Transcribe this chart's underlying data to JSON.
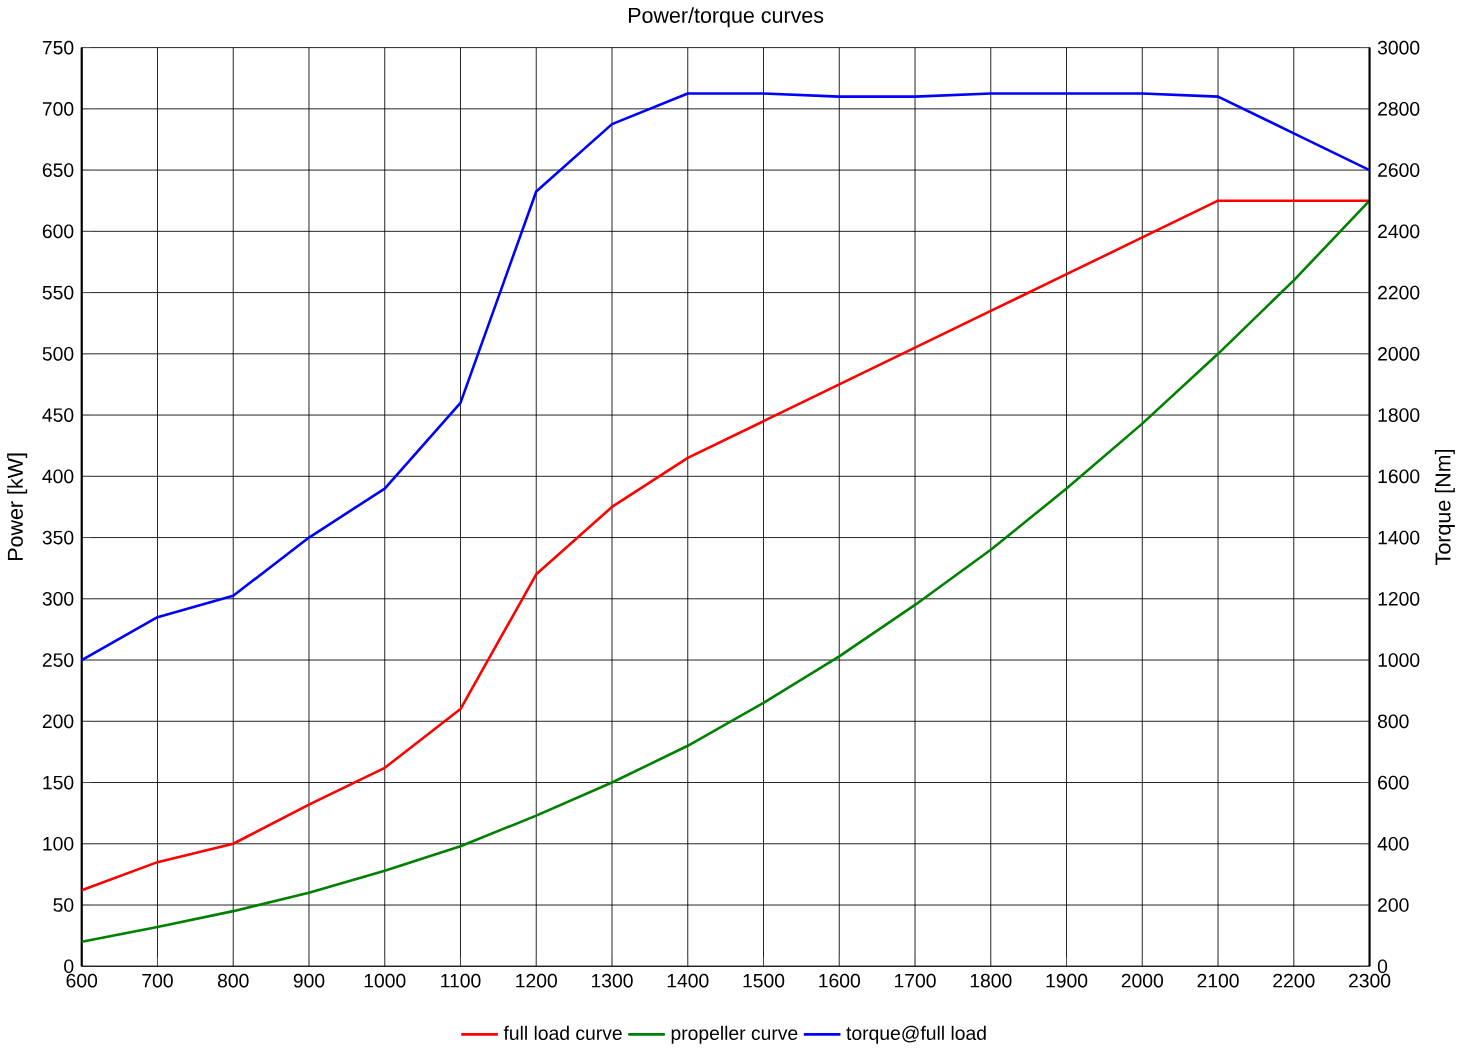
{
  "chart_data": {
    "type": "line",
    "title": "Power/torque curves",
    "ylabel": "Power [kW]",
    "y2label": "Torque [Nm]",
    "x": [
      600,
      700,
      800,
      900,
      1000,
      1100,
      1200,
      1300,
      1400,
      1500,
      1600,
      1700,
      1800,
      1900,
      2000,
      2100,
      2200,
      2300
    ],
    "series": [
      {
        "name": "full load curve",
        "color": "#ff0000",
        "values": [
          62,
          85,
          100,
          132,
          162,
          210,
          320,
          375,
          415,
          445,
          475,
          505,
          535,
          565,
          595,
          625,
          625,
          625
        ]
      },
      {
        "name": "propeller curve",
        "color": "#008000",
        "values": [
          20,
          32,
          45,
          60,
          78,
          98,
          123,
          150,
          180,
          215,
          253,
          295,
          340,
          390,
          443,
          500,
          560,
          625
        ]
      },
      {
        "name": "torque@full load",
        "color": "#0000ff",
        "axis": "y2",
        "values": [
          1000,
          1140,
          1210,
          1400,
          1560,
          1840,
          2530,
          2750,
          2850,
          2850,
          2840,
          2840,
          2850,
          2850,
          2850,
          2840,
          2720,
          2600
        ]
      }
    ],
    "xlim": [
      600,
      2300
    ],
    "xticks": [
      600,
      700,
      800,
      900,
      1000,
      1100,
      1200,
      1300,
      1400,
      1500,
      1600,
      1700,
      1800,
      1900,
      2000,
      2100,
      2200,
      2300
    ],
    "ylim": [
      0,
      750
    ],
    "yticks": [
      0,
      50,
      100,
      150,
      200,
      250,
      300,
      350,
      400,
      450,
      500,
      550,
      600,
      650,
      700,
      750
    ],
    "y2lim": [
      0,
      3000
    ],
    "y2ticks": [
      0,
      200,
      400,
      600,
      800,
      1000,
      1200,
      1400,
      1600,
      1800,
      2000,
      2200,
      2400,
      2600,
      2800,
      3000
    ],
    "grid": true,
    "legend": "bottom",
    "marker": "none",
    "line_style": "solid"
  }
}
